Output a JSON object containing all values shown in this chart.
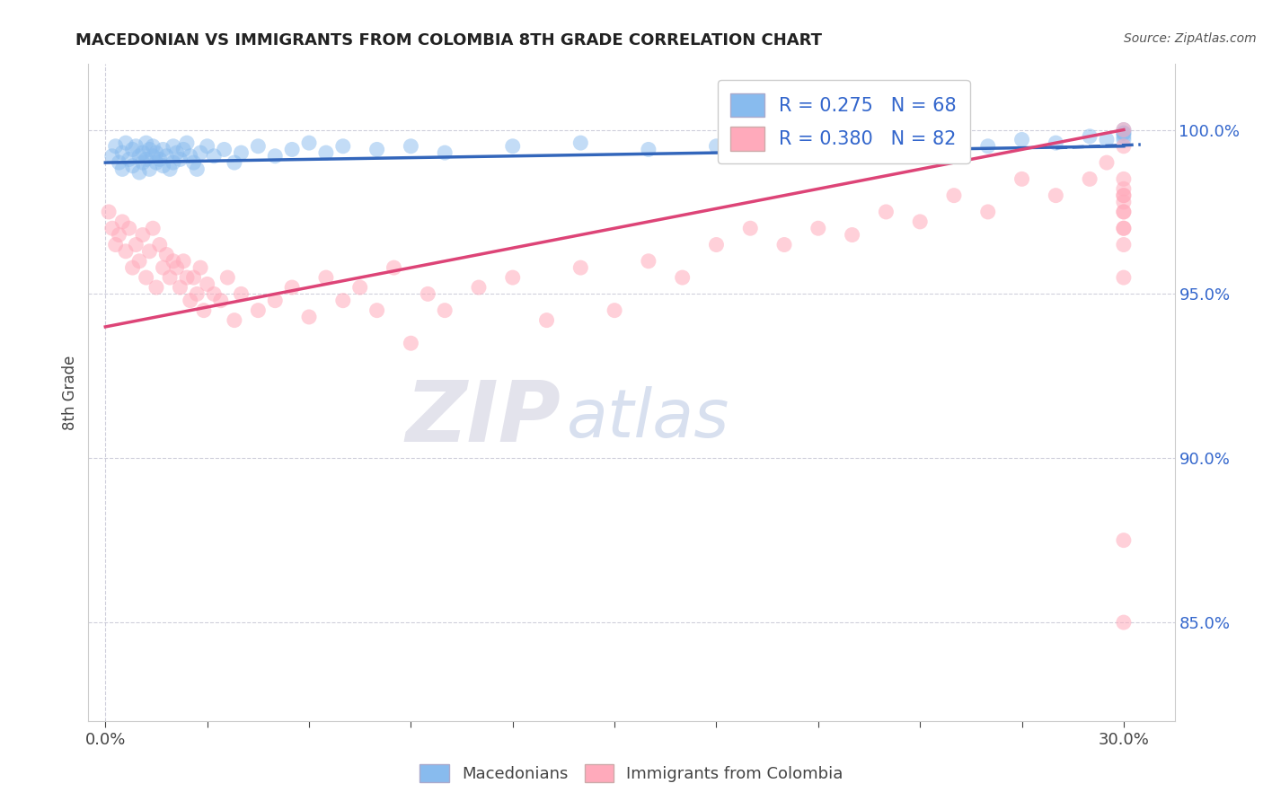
{
  "title": "MACEDONIAN VS IMMIGRANTS FROM COLOMBIA 8TH GRADE CORRELATION CHART",
  "source_text": "Source: ZipAtlas.com",
  "ylabel": "8th Grade",
  "xlim": [
    -0.5,
    31.5
  ],
  "ylim": [
    82.0,
    102.0
  ],
  "x_ticks": [
    0.0,
    3.0,
    6.0,
    9.0,
    12.0,
    15.0,
    18.0,
    21.0,
    24.0,
    27.0,
    30.0
  ],
  "x_tick_labels_show": [
    "0.0%",
    "",
    "",
    "",
    "",
    "",
    "",
    "",
    "",
    "",
    "30.0%"
  ],
  "y_ticks_right": [
    85.0,
    90.0,
    95.0,
    100.0
  ],
  "y_tick_labels_right": [
    "85.0%",
    "90.0%",
    "95.0%",
    "100.0%"
  ],
  "blue_R": 0.275,
  "blue_N": 68,
  "pink_R": 0.38,
  "pink_N": 82,
  "blue_color": "#88BBEE",
  "pink_color": "#FFAABB",
  "blue_line_color": "#3366BB",
  "pink_line_color": "#DD4477",
  "legend_blue": "Macedonians",
  "legend_pink": "Immigrants from Colombia",
  "blue_scatter_x": [
    0.2,
    0.3,
    0.4,
    0.5,
    0.5,
    0.6,
    0.7,
    0.8,
    0.8,
    0.9,
    1.0,
    1.0,
    1.1,
    1.1,
    1.2,
    1.2,
    1.3,
    1.3,
    1.4,
    1.4,
    1.5,
    1.5,
    1.6,
    1.7,
    1.7,
    1.8,
    1.9,
    2.0,
    2.0,
    2.1,
    2.2,
    2.3,
    2.4,
    2.5,
    2.6,
    2.7,
    2.8,
    3.0,
    3.2,
    3.5,
    3.8,
    4.0,
    4.5,
    5.0,
    5.5,
    6.0,
    6.5,
    7.0,
    8.0,
    9.0,
    10.0,
    12.0,
    14.0,
    16.0,
    18.0,
    20.0,
    22.0,
    24.0,
    26.0,
    27.0,
    28.0,
    29.0,
    29.5,
    30.0,
    30.0,
    30.0,
    30.0,
    30.0
  ],
  "blue_scatter_y": [
    99.2,
    99.5,
    99.0,
    98.8,
    99.3,
    99.6,
    99.1,
    99.4,
    98.9,
    99.5,
    99.2,
    98.7,
    99.3,
    99.0,
    99.6,
    99.1,
    99.4,
    98.8,
    99.2,
    99.5,
    99.0,
    99.3,
    99.1,
    99.4,
    98.9,
    99.2,
    98.8,
    99.5,
    99.0,
    99.3,
    99.1,
    99.4,
    99.6,
    99.2,
    99.0,
    98.8,
    99.3,
    99.5,
    99.2,
    99.4,
    99.0,
    99.3,
    99.5,
    99.2,
    99.4,
    99.6,
    99.3,
    99.5,
    99.4,
    99.5,
    99.3,
    99.5,
    99.6,
    99.4,
    99.5,
    99.6,
    99.5,
    99.6,
    99.5,
    99.7,
    99.6,
    99.8,
    99.7,
    99.9,
    99.8,
    99.7,
    99.9,
    100.0
  ],
  "pink_scatter_x": [
    0.1,
    0.2,
    0.3,
    0.4,
    0.5,
    0.6,
    0.7,
    0.8,
    0.9,
    1.0,
    1.1,
    1.2,
    1.3,
    1.4,
    1.5,
    1.6,
    1.7,
    1.8,
    1.9,
    2.0,
    2.1,
    2.2,
    2.3,
    2.4,
    2.5,
    2.6,
    2.7,
    2.8,
    2.9,
    3.0,
    3.2,
    3.4,
    3.6,
    3.8,
    4.0,
    4.5,
    5.0,
    5.5,
    6.0,
    6.5,
    7.0,
    7.5,
    8.0,
    8.5,
    9.0,
    9.5,
    10.0,
    11.0,
    12.0,
    13.0,
    14.0,
    15.0,
    16.0,
    17.0,
    18.0,
    19.0,
    20.0,
    21.0,
    22.0,
    23.0,
    24.0,
    25.0,
    26.0,
    27.0,
    28.0,
    29.0,
    29.5,
    30.0,
    30.0,
    30.0,
    30.0,
    30.0,
    30.0,
    30.0,
    30.0,
    30.0,
    30.0,
    30.0,
    30.0,
    30.0,
    30.0,
    30.0
  ],
  "pink_scatter_y": [
    97.5,
    97.0,
    96.5,
    96.8,
    97.2,
    96.3,
    97.0,
    95.8,
    96.5,
    96.0,
    96.8,
    95.5,
    96.3,
    97.0,
    95.2,
    96.5,
    95.8,
    96.2,
    95.5,
    96.0,
    95.8,
    95.2,
    96.0,
    95.5,
    94.8,
    95.5,
    95.0,
    95.8,
    94.5,
    95.3,
    95.0,
    94.8,
    95.5,
    94.2,
    95.0,
    94.5,
    94.8,
    95.2,
    94.3,
    95.5,
    94.8,
    95.2,
    94.5,
    95.8,
    93.5,
    95.0,
    94.5,
    95.2,
    95.5,
    94.2,
    95.8,
    94.5,
    96.0,
    95.5,
    96.5,
    97.0,
    96.5,
    97.0,
    96.8,
    97.5,
    97.2,
    98.0,
    97.5,
    98.5,
    98.0,
    98.5,
    99.0,
    100.0,
    99.5,
    98.5,
    97.8,
    98.0,
    97.5,
    98.2,
    97.0,
    97.5,
    98.0,
    96.5,
    97.0,
    95.5,
    87.5,
    85.0
  ]
}
